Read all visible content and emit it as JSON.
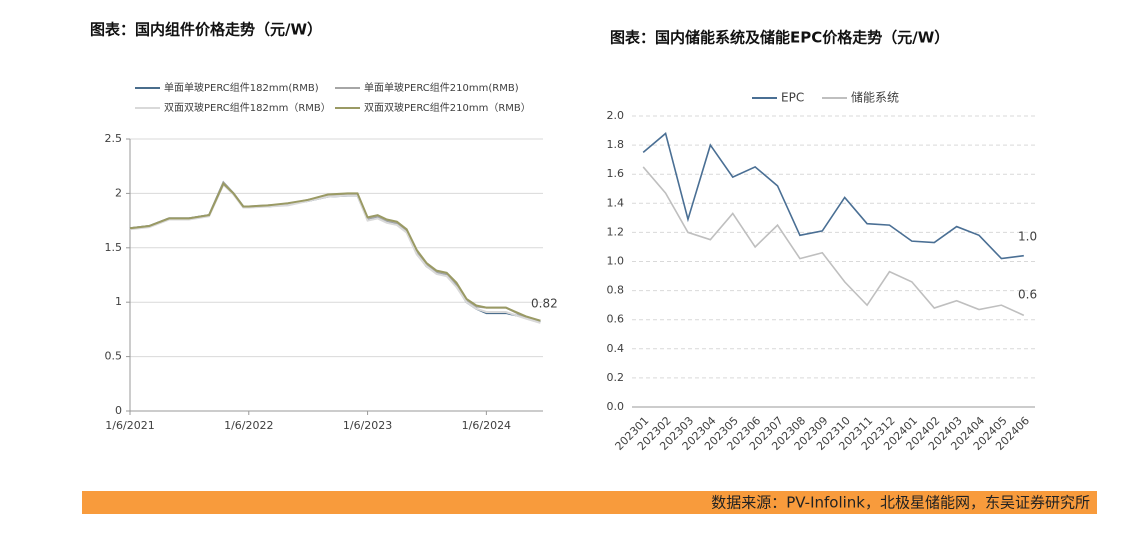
{
  "chart_data": [
    {
      "type": "line",
      "title": "图表：国内组件价格走势（元/W）",
      "x": [
        "1/6/2021",
        "3/6/2021",
        "5/6/2021",
        "7/6/2021",
        "9/6/2021",
        "10/20/2021",
        "11/20/2021",
        "12/20/2021",
        "1/6/2022",
        "3/6/2022",
        "5/6/2022",
        "7/6/2022",
        "9/6/2022",
        "11/6/2022",
        "12/6/2022",
        "1/6/2023",
        "2/6/2023",
        "3/6/2023",
        "4/6/2023",
        "5/6/2023",
        "6/6/2023",
        "7/6/2023",
        "8/6/2023",
        "9/6/2023",
        "10/6/2023",
        "11/6/2023",
        "12/6/2023",
        "1/6/2024",
        "3/6/2024",
        "5/6/2024",
        "6/20/2024"
      ],
      "series": [
        {
          "name": "单面单玻PERC组件182mm(RMB)",
          "color": "#4a6d8c",
          "values": [
            1.68,
            1.7,
            1.77,
            1.77,
            1.8,
            2.1,
            2.0,
            1.88,
            1.88,
            1.88,
            1.9,
            1.93,
            1.97,
            1.98,
            1.98,
            1.76,
            1.78,
            1.74,
            1.72,
            1.65,
            1.45,
            1.33,
            1.27,
            1.25,
            1.15,
            1.0,
            0.94,
            0.9,
            0.9,
            0.86,
            0.82
          ]
        },
        {
          "name": "单面单玻PERC组件210mm(RMB)",
          "color": "#a6a6a6",
          "values": [
            1.68,
            1.7,
            1.77,
            1.77,
            1.8,
            2.1,
            2.0,
            1.88,
            1.88,
            1.89,
            1.9,
            1.94,
            1.98,
            1.99,
            1.99,
            1.77,
            1.79,
            1.75,
            1.73,
            1.66,
            1.47,
            1.35,
            1.28,
            1.26,
            1.17,
            1.02,
            0.96,
            0.95,
            0.95,
            0.86,
            0.83
          ]
        },
        {
          "name": "双面双玻PERC组件182mm（RMB）",
          "color": "#d9d9d9",
          "values": [
            1.67,
            1.69,
            1.76,
            1.76,
            1.79,
            2.08,
            1.99,
            1.87,
            1.87,
            1.88,
            1.89,
            1.93,
            1.97,
            1.98,
            1.98,
            1.75,
            1.77,
            1.73,
            1.71,
            1.64,
            1.44,
            1.33,
            1.26,
            1.24,
            1.14,
            1.0,
            0.94,
            0.91,
            0.91,
            0.85,
            0.81
          ]
        },
        {
          "name": "双面双玻PERC组件210mm（RMB）",
          "color": "#9a9a64",
          "values": [
            1.68,
            1.7,
            1.77,
            1.77,
            1.8,
            2.09,
            2.0,
            1.88,
            1.88,
            1.89,
            1.91,
            1.94,
            1.99,
            2.0,
            2.0,
            1.78,
            1.8,
            1.76,
            1.74,
            1.67,
            1.48,
            1.36,
            1.29,
            1.27,
            1.18,
            1.03,
            0.97,
            0.95,
            0.95,
            0.87,
            0.83
          ]
        }
      ],
      "xlim": [
        "1/6/2021",
        "6/28/2024"
      ],
      "xticks": [
        "1/6/2021",
        "1/6/2022",
        "1/6/2023",
        "1/6/2024"
      ],
      "ylim": [
        0,
        2.5
      ],
      "yticks": [
        0,
        0.5,
        1,
        1.5,
        2,
        2.5
      ],
      "grid": true,
      "annotations": [
        "0.82"
      ]
    },
    {
      "type": "line",
      "title": "图表：国内储能系统及储能EPC价格走势（元/W）",
      "categories": [
        "202301",
        "202302",
        "202303",
        "202304",
        "202305",
        "202306",
        "202307",
        "202308",
        "202309",
        "202310",
        "202311",
        "202312",
        "202401",
        "202402",
        "202403",
        "202404",
        "202405",
        "202406"
      ],
      "series": [
        {
          "name": "EPC",
          "color": "#4a6f94",
          "values": [
            1.75,
            1.88,
            1.29,
            1.8,
            1.58,
            1.65,
            1.52,
            1.18,
            1.21,
            1.44,
            1.26,
            1.25,
            1.14,
            1.13,
            1.24,
            1.18,
            1.02,
            1.04
          ]
        },
        {
          "name": "储能系统",
          "color": "#bfbfbf",
          "values": [
            1.65,
            1.47,
            1.2,
            1.15,
            1.33,
            1.1,
            1.25,
            1.02,
            1.06,
            0.86,
            0.7,
            0.93,
            0.86,
            0.68,
            0.73,
            0.67,
            0.7,
            0.63
          ]
        }
      ],
      "ylim": [
        0,
        2
      ],
      "yticks": [
        {
          "value": 0,
          "label": "0.0"
        },
        0.2,
        0.4,
        0.6,
        0.8,
        {
          "value": 1,
          "label": "1.0"
        },
        1.2,
        1.4,
        1.6,
        1.8,
        {
          "value": 2,
          "label": "2.0"
        }
      ],
      "grid": true,
      "grid_style": "dashed",
      "annotations": [
        "1.0",
        "0.6"
      ]
    }
  ],
  "footer": {
    "text": "数据来源：PV-Infolink，北极星储能网，东吴证券研究所"
  }
}
